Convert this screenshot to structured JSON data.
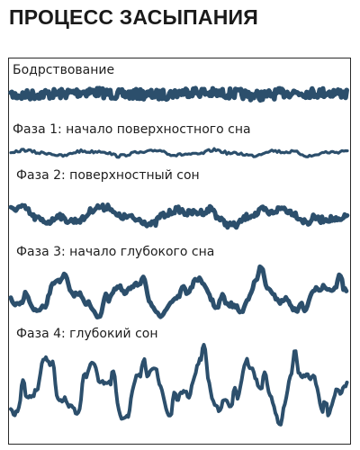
{
  "title": "ПРОЦЕСС ЗАСЫПАНИЯ",
  "wave_color": "#2c4f6c",
  "stages": [
    {
      "label": "Бодрствование"
    },
    {
      "label": "Фаза 1: начало поверхностного сна"
    },
    {
      "label": "Фаза 2: поверхностный сон"
    },
    {
      "label": "Фаза 3: начало глубокого сна"
    },
    {
      "label": "Фаза 4: глубокий сон"
    }
  ]
}
